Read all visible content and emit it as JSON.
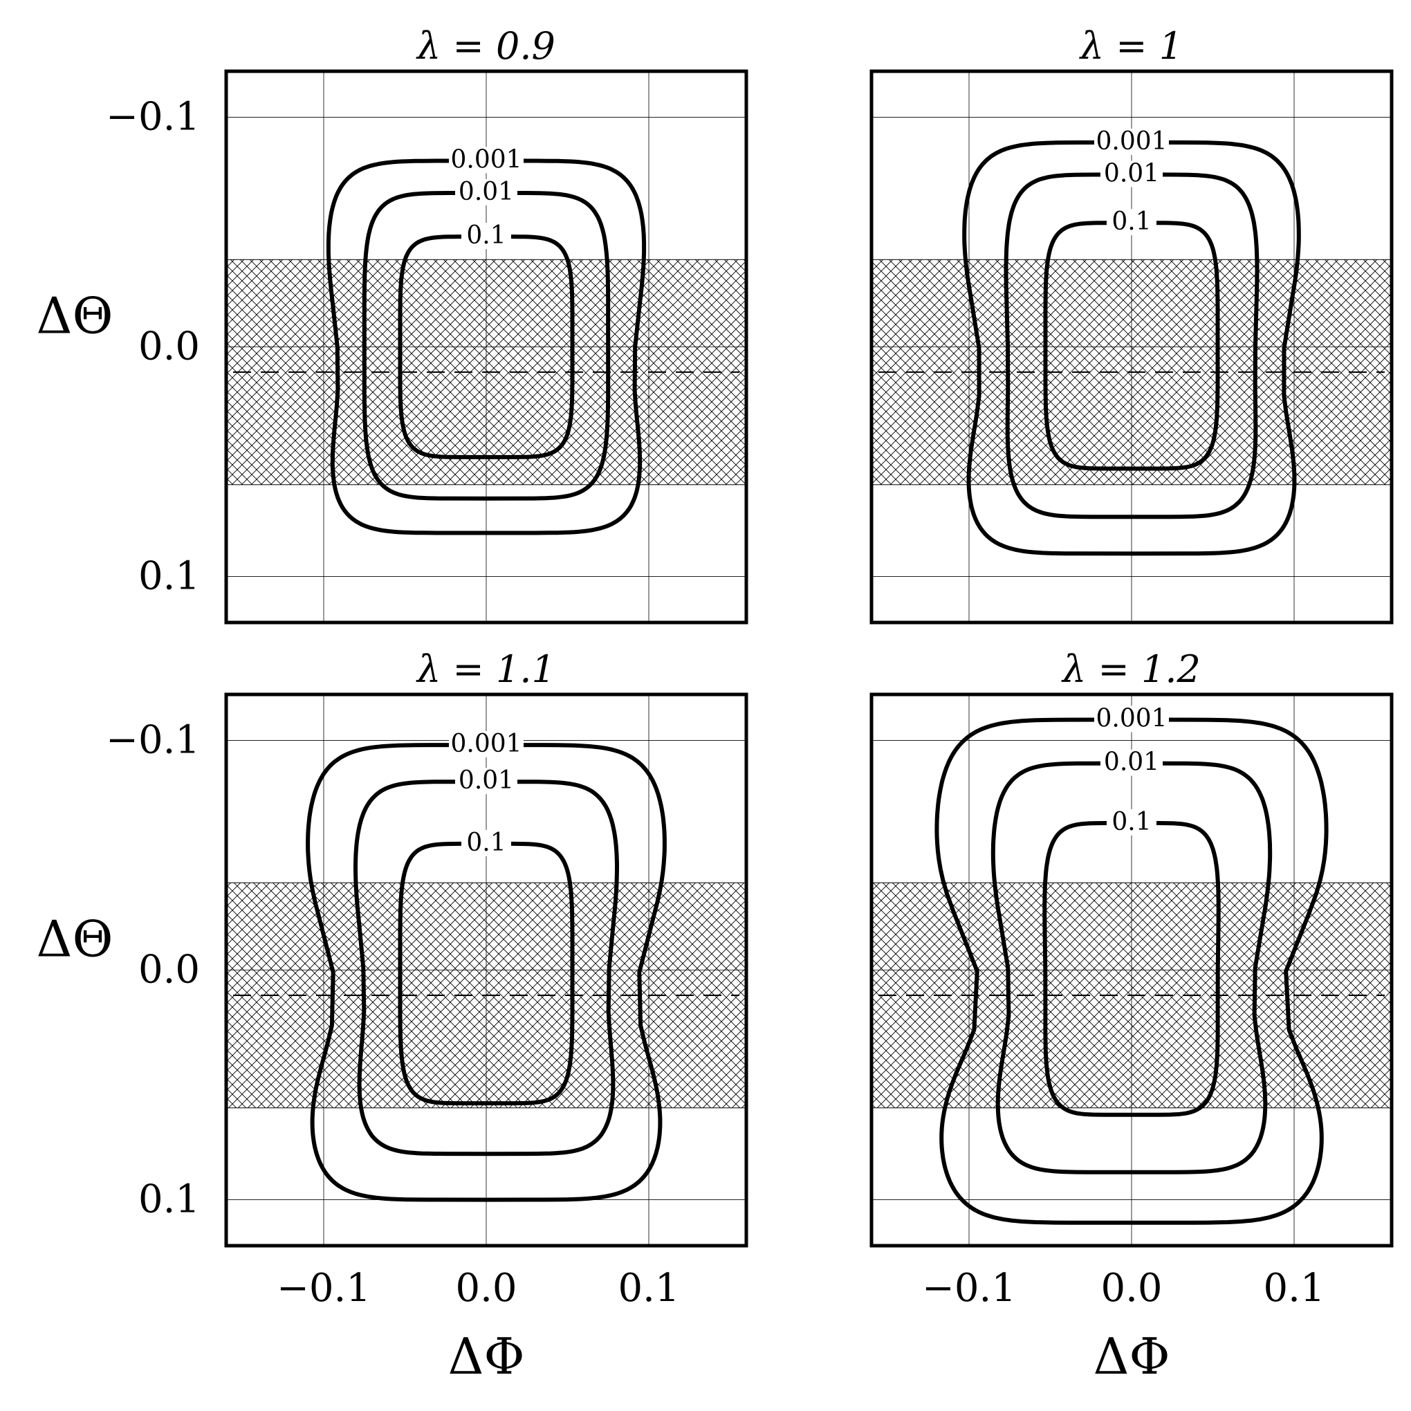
{
  "figure": {
    "shared_xlabel": "ΔΦ",
    "shared_ylabel": "ΔΘ"
  },
  "chart_data": [
    {
      "type": "contour",
      "title": "λ = 0.9",
      "xlabel": "",
      "ylabel": "ΔΘ",
      "xlim": [
        -0.16,
        0.16
      ],
      "ylim": [
        -0.12,
        0.12
      ],
      "xticks": [
        -0.1,
        0.0,
        0.1
      ],
      "yticks": [
        -0.1,
        0.0,
        0.1
      ],
      "xtick_labels": [
        "",
        "",
        ""
      ],
      "ytick_labels": [
        "0.1",
        "0.0",
        "−0.1"
      ],
      "grid": true,
      "hatched_band": {
        "y_min": -0.06,
        "y_max": 0.038
      },
      "dashed_line_y": -0.011,
      "contours": [
        {
          "label": "0.001",
          "xmax": 0.099,
          "ytop": 0.081,
          "ybot": -0.081,
          "neck": 0.091,
          "neck_y": -0.011
        },
        {
          "label": "0.01",
          "xmax": 0.075,
          "ytop": 0.067,
          "ybot": -0.066,
          "neck": 0.075,
          "neck_y": -0.011
        },
        {
          "label": "0.1",
          "xmax": 0.053,
          "ytop": 0.048,
          "ybot": -0.048,
          "neck": 0.053,
          "neck_y": -0.011
        }
      ]
    },
    {
      "type": "contour",
      "title": "λ = 1",
      "xlabel": "",
      "ylabel": "",
      "xlim": [
        -0.16,
        0.16
      ],
      "ylim": [
        -0.12,
        0.12
      ],
      "xticks": [
        -0.1,
        0.0,
        0.1
      ],
      "yticks": [
        -0.1,
        0.0,
        0.1
      ],
      "xtick_labels": [
        "",
        "",
        ""
      ],
      "ytick_labels": [
        "",
        "",
        ""
      ],
      "grid": true,
      "hatched_band": {
        "y_min": -0.06,
        "y_max": 0.038
      },
      "dashed_line_y": -0.011,
      "contours": [
        {
          "label": "0.001",
          "xmax": 0.105,
          "ytop": 0.089,
          "ybot": -0.09,
          "neck": 0.093,
          "neck_y": -0.011
        },
        {
          "label": "0.01",
          "xmax": 0.078,
          "ytop": 0.075,
          "ybot": -0.074,
          "neck": 0.076,
          "neck_y": -0.011
        },
        {
          "label": "0.1",
          "xmax": 0.053,
          "ytop": 0.054,
          "ybot": -0.053,
          "neck": 0.053,
          "neck_y": -0.011
        }
      ]
    },
    {
      "type": "contour",
      "title": "λ = 1.1",
      "xlabel": "ΔΦ",
      "ylabel": "ΔΘ",
      "xlim": [
        -0.16,
        0.16
      ],
      "ylim": [
        -0.12,
        0.12
      ],
      "xticks": [
        -0.1,
        0.0,
        0.1
      ],
      "yticks": [
        -0.1,
        0.0,
        0.1
      ],
      "xtick_labels": [
        "−0.1",
        "0.0",
        "0.1"
      ],
      "ytick_labels": [
        "0.1",
        "0.0",
        "−0.1"
      ],
      "grid": true,
      "hatched_band": {
        "y_min": -0.06,
        "y_max": 0.038
      },
      "dashed_line_y": -0.011,
      "contours": [
        {
          "label": "0.001",
          "xmax": 0.112,
          "ytop": 0.098,
          "ybot": -0.1,
          "neck": 0.093,
          "neck_y": -0.011
        },
        {
          "label": "0.01",
          "xmax": 0.082,
          "ytop": 0.082,
          "ybot": -0.08,
          "neck": 0.075,
          "neck_y": -0.011
        },
        {
          "label": "0.1",
          "xmax": 0.053,
          "ytop": 0.055,
          "ybot": -0.058,
          "neck": 0.053,
          "neck_y": -0.011
        }
      ]
    },
    {
      "type": "contour",
      "title": "λ = 1.2",
      "xlabel": "ΔΦ",
      "ylabel": "",
      "xlim": [
        -0.16,
        0.16
      ],
      "ylim": [
        -0.12,
        0.12
      ],
      "xticks": [
        -0.1,
        0.0,
        0.1
      ],
      "yticks": [
        -0.1,
        0.0,
        0.1
      ],
      "xtick_labels": [
        "−0.1",
        "0.0",
        "0.1"
      ],
      "ytick_labels": [
        "",
        "",
        ""
      ],
      "grid": true,
      "hatched_band": {
        "y_min": -0.06,
        "y_max": 0.038
      },
      "dashed_line_y": -0.011,
      "contours": [
        {
          "label": "0.001",
          "xmax": 0.122,
          "ytop": 0.109,
          "ybot": -0.11,
          "neck": 0.093,
          "neck_y": -0.011
        },
        {
          "label": "0.01",
          "xmax": 0.087,
          "ytop": 0.09,
          "ybot": -0.088,
          "neck": 0.075,
          "neck_y": -0.011
        },
        {
          "label": "0.1",
          "xmax": 0.054,
          "ytop": 0.064,
          "ybot": -0.063,
          "neck": 0.053,
          "neck_y": -0.011
        }
      ]
    }
  ]
}
